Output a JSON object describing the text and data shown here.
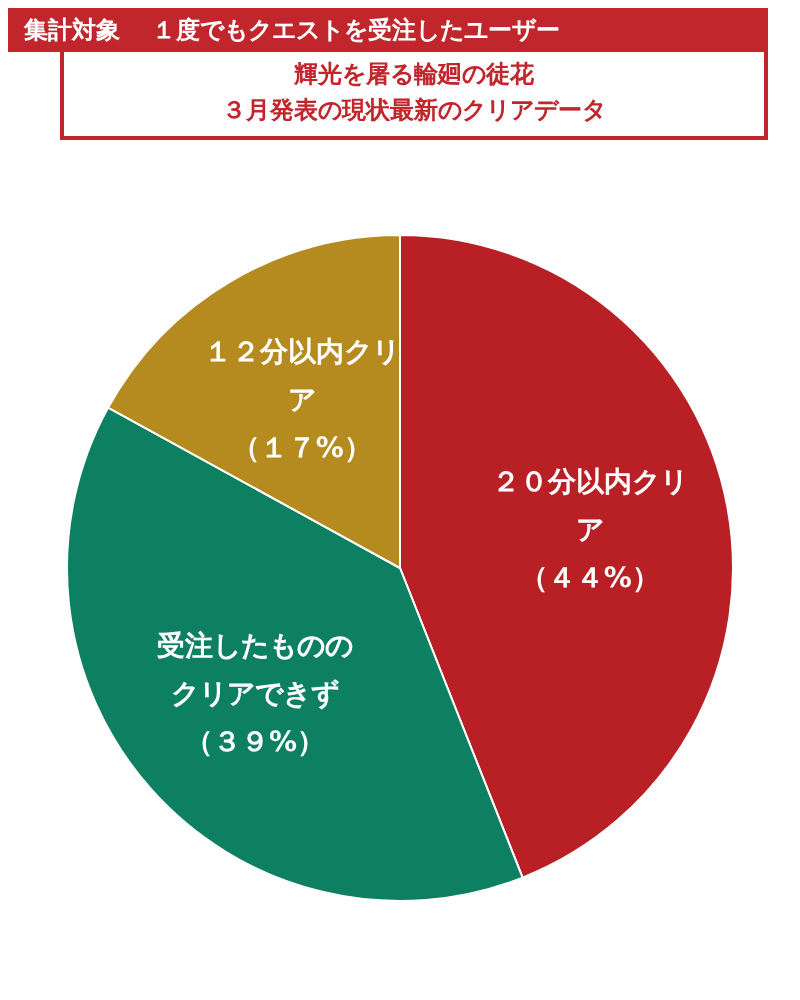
{
  "chart_data": {
    "type": "pie",
    "title": "集計対象",
    "subtitle": "１度でもクエストを受注したユーザー",
    "annotations": [
      "輝光を屠る輪廻の徒花",
      "３月発表の現状最新のクリアデータ"
    ],
    "categories": [
      "２０分以内クリア",
      "受注したもののクリアできず",
      "１２分以内クリア"
    ],
    "values": [
      44,
      39,
      17
    ],
    "value_labels": [
      "（４４%）",
      "（３９%）",
      "（１７%）"
    ],
    "colors": [
      "#b82025",
      "#0d8062",
      "#b58a1e"
    ],
    "legend": false
  }
}
